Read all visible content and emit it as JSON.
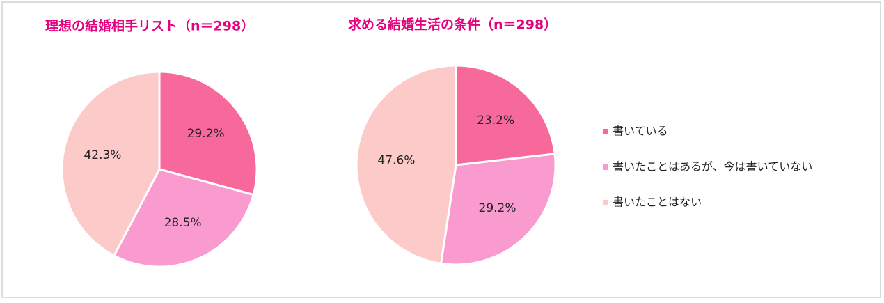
{
  "chart_data": [
    {
      "type": "pie",
      "title": "理想の結婚相手リスト（n＝298）",
      "values": [
        29.2,
        28.5,
        42.3
      ],
      "value_labels": [
        "29.2%",
        "28.5%",
        "42.3%"
      ]
    },
    {
      "type": "pie",
      "title": "求める結婚生活の条件（n＝298）",
      "values": [
        23.2,
        29.2,
        47.6
      ],
      "value_labels": [
        "23.2%",
        "29.2%",
        "47.6%"
      ]
    }
  ],
  "legend": [
    {
      "name": "書いている",
      "color": "#f7689b"
    },
    {
      "name": "書いたことはあるが、今は書いていない",
      "color": "#f99bcf"
    },
    {
      "name": "書いたことはない",
      "color": "#fdcaca"
    }
  ]
}
